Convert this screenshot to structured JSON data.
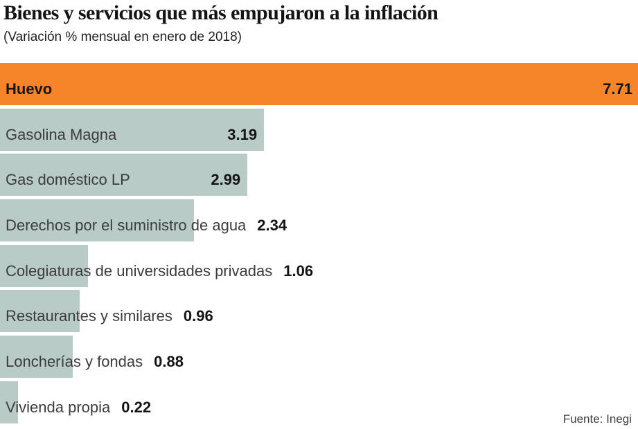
{
  "header": {
    "title": "Bienes y servicios que más empujaron a la inflación",
    "subtitle": "(Variación % mensual en enero de 2018)"
  },
  "source": {
    "label": "Fuente: Inegi"
  },
  "colors": {
    "highlight_bar": "#f68428",
    "bar": "#b9cbc7",
    "background": "#ffffff",
    "label_text": "#3c3c3c",
    "value_text": "#141414"
  },
  "chart_data": {
    "type": "bar",
    "orientation": "horizontal",
    "title": "Bienes y servicios que más empujaron a la inflación",
    "subtitle": "(Variación % mensual en enero de 2018)",
    "source": "Fuente: Inegi",
    "xlabel": "",
    "ylabel": "",
    "xlim": [
      0,
      7.71
    ],
    "grid": false,
    "legend": false,
    "categories": [
      "Huevo",
      "Gasolina Magna",
      "Gas doméstico LP",
      "Derechos por el suministro de agua",
      "Colegiaturas de universidades privadas",
      "Restaurantes y similares",
      "Loncherías y fondas",
      "Vivienda propia"
    ],
    "values": [
      7.71,
      3.19,
      2.99,
      2.34,
      1.06,
      0.96,
      0.88,
      0.22
    ],
    "value_labels": [
      "7.71",
      "3.19",
      "2.99",
      "2.34",
      "1.06",
      "0.96",
      "0.88",
      "0.22"
    ],
    "highlighted_category": "Huevo",
    "value_inside_bar": [
      true,
      true,
      true,
      false,
      false,
      false,
      false,
      false
    ]
  }
}
